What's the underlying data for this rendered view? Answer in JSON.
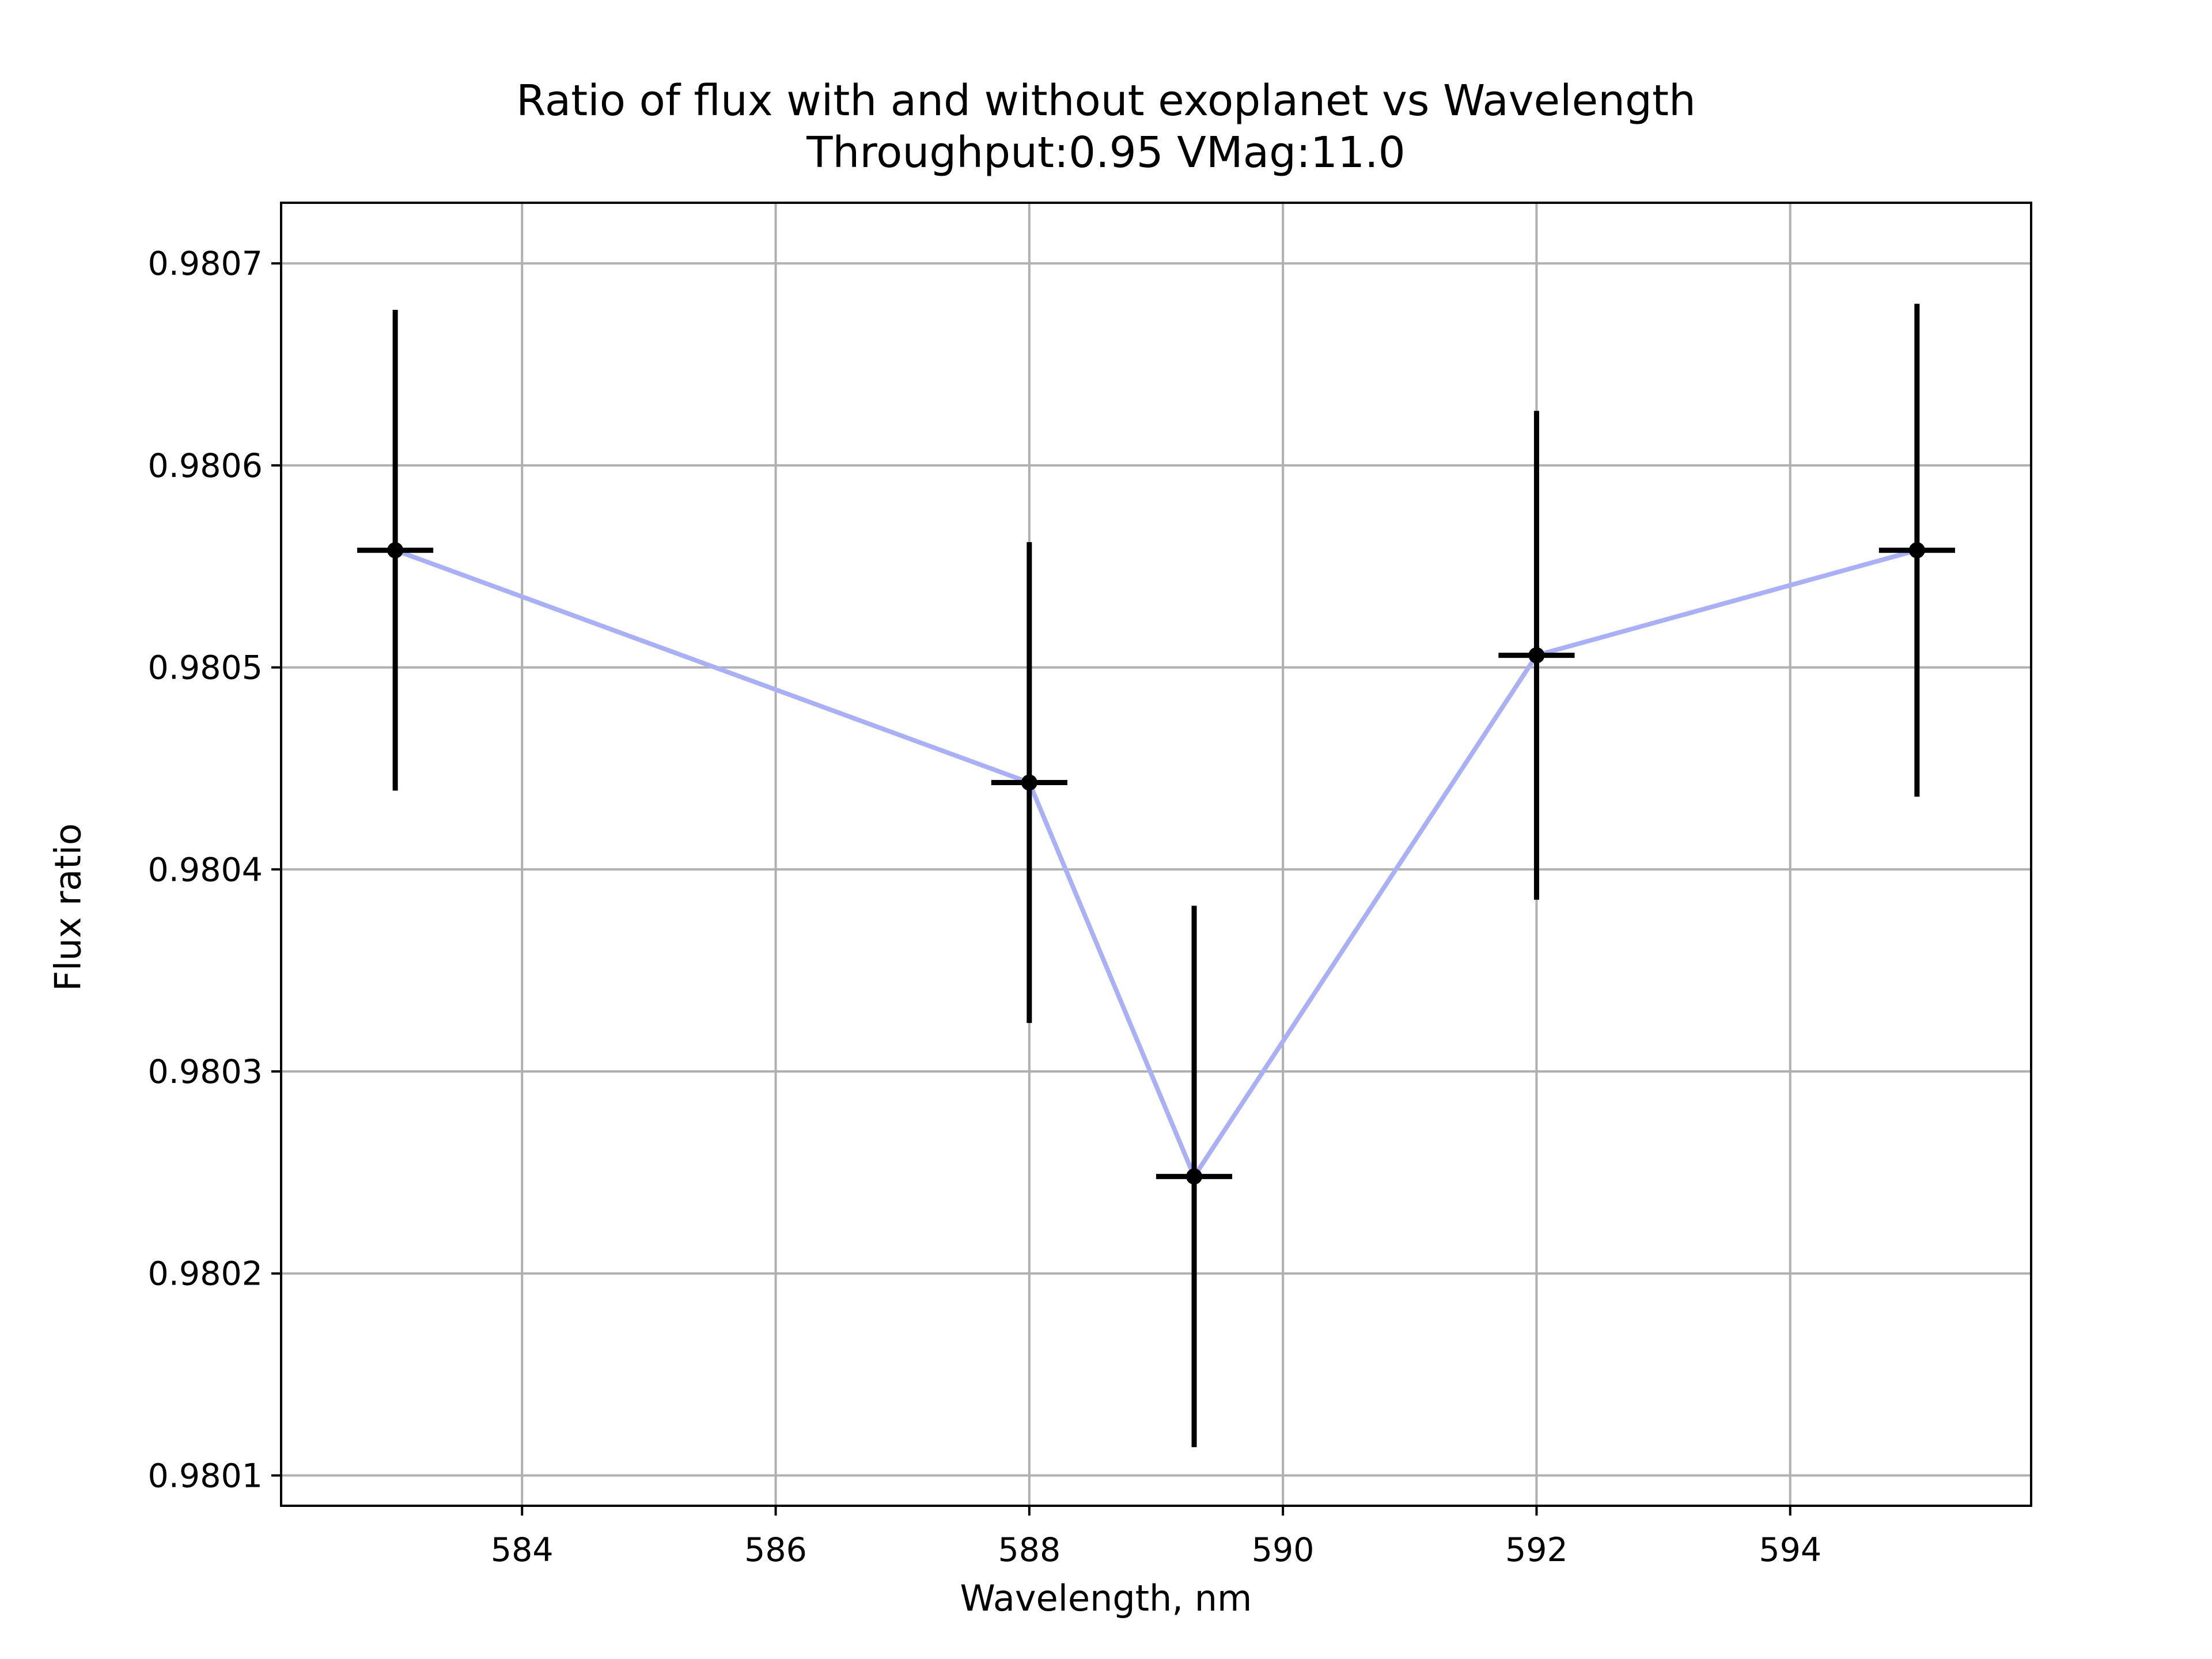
{
  "chart_data": {
    "type": "scatter",
    "title": "Ratio of flux with and without exoplanet vs Wavelength",
    "subtitle": "Throughput:0.95 VMag:11.0",
    "xlabel": "Wavelength, nm",
    "ylabel": "Flux ratio",
    "xlim": [
      582.1,
      595.9
    ],
    "ylim": [
      0.980085,
      0.98073
    ],
    "xticks": [
      584,
      586,
      588,
      590,
      592,
      594
    ],
    "xtick_labels": [
      "584",
      "586",
      "588",
      "590",
      "592",
      "594"
    ],
    "yticks": [
      0.9801,
      0.9802,
      0.9803,
      0.9804,
      0.9805,
      0.9806,
      0.9807
    ],
    "ytick_labels": [
      "0.9801",
      "0.9802",
      "0.9803",
      "0.9804",
      "0.9805",
      "0.9806",
      "0.9807"
    ],
    "grid": true,
    "series": [
      {
        "x": [
          583,
          588,
          589.3,
          592,
          595
        ],
        "y": [
          0.980558,
          0.980443,
          0.980248,
          0.980506,
          0.980558
        ],
        "yerr": [
          0.000119,
          0.000119,
          0.000134,
          0.000121,
          0.000122
        ],
        "xerr": [
          0.3,
          0.3,
          0.3,
          0.3,
          0.3
        ],
        "line_color": "#aab0f5",
        "marker_color": "#000000"
      }
    ]
  }
}
